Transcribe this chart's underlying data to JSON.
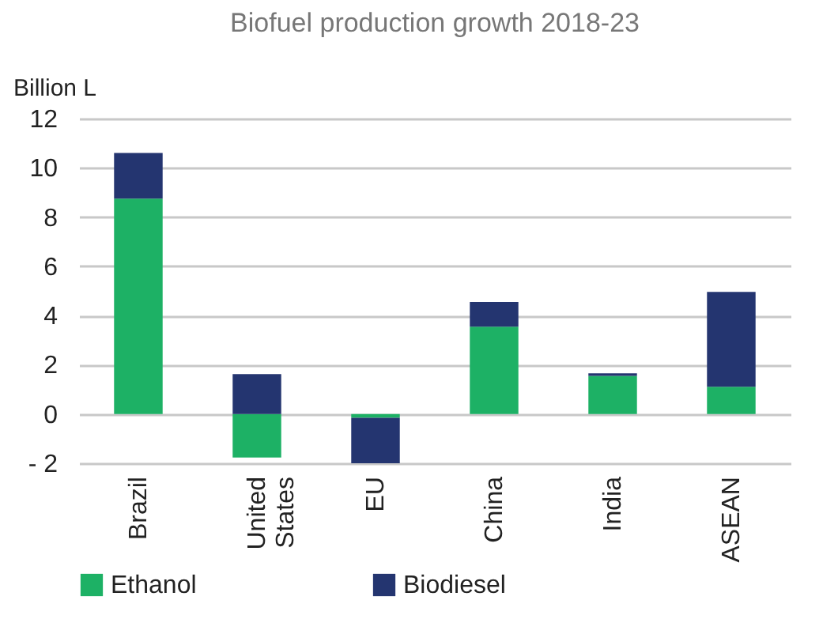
{
  "chart_data": {
    "type": "bar",
    "title": "Biofuel production growth 2018-23",
    "ylabel": "Billion L",
    "categories": [
      "Brazil",
      "United States",
      "EU",
      "China",
      "India",
      "ASEAN"
    ],
    "stacked": true,
    "series": [
      {
        "name": "Ethanol",
        "color": "#1db165",
        "values": [
          8.75,
          -1.77,
          -0.15,
          3.55,
          1.55,
          1.11
        ]
      },
      {
        "name": "Biodiesel",
        "color": "#243570",
        "values": [
          1.85,
          1.62,
          -1.85,
          1.0,
          0.1,
          3.85
        ]
      }
    ],
    "ylim": [
      -2,
      12
    ],
    "yticks": [
      {
        "value": -2,
        "label": "- 2"
      },
      0,
      2,
      4,
      6,
      8,
      10,
      12
    ],
    "grid": "y",
    "legend": "bottom"
  }
}
